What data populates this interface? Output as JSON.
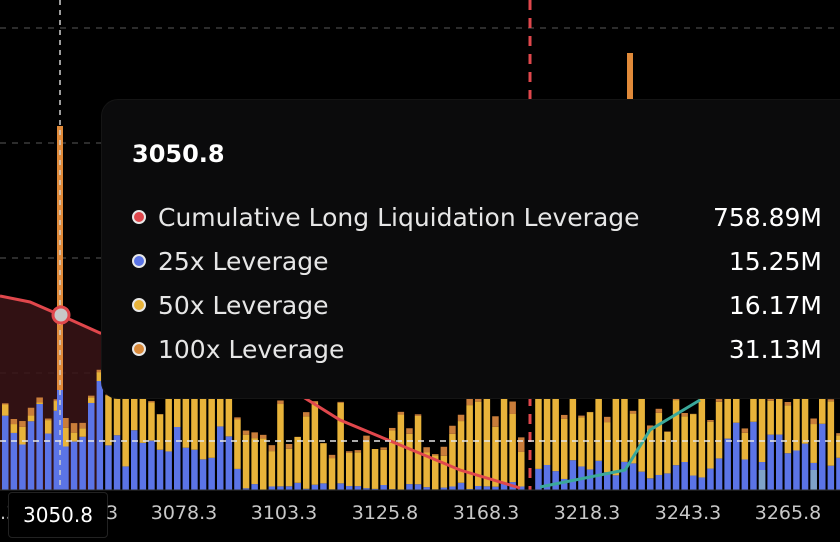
{
  "chart_data": {
    "type": "bar",
    "x_ticks": [
      "3078.3",
      "3103.3",
      "3125.8",
      "3168.3",
      "3218.3",
      "3243.3",
      "3265.8"
    ],
    "cursor_x": "3050.8",
    "series": [
      {
        "name": "Cumulative Long Liquidation Leverage",
        "color": "#e0474c"
      },
      {
        "name": "25x Leverage",
        "color": "#5b74e6"
      },
      {
        "name": "50x Leverage",
        "color": "#e8b33a"
      },
      {
        "name": "100x Leverage",
        "color": "#d98a3b"
      }
    ],
    "tooltip": {
      "title": "3050.8",
      "rows": [
        {
          "label": "Cumulative Long Liquidation Leverage",
          "value": "758.89M",
          "color": "#e0474c"
        },
        {
          "label": "25x Leverage",
          "value": "15.25M",
          "color": "#5b74e6"
        },
        {
          "label": "50x Leverage",
          "value": "16.17M",
          "color": "#e8b33a"
        },
        {
          "label": "100x Leverage",
          "value": "31.13M",
          "color": "#d98a3b"
        }
      ]
    },
    "first_tick_partial": ".3",
    "extra_partial_tick": "3"
  }
}
